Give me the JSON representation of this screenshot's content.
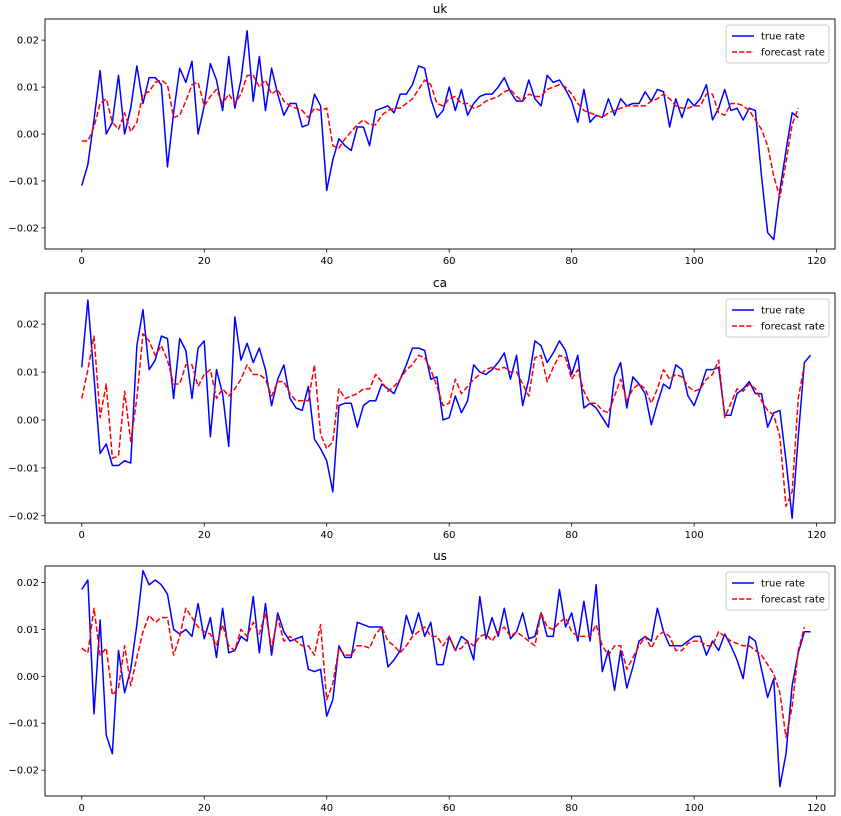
{
  "chart_data": [
    {
      "type": "line",
      "title": "uk",
      "xlim": [
        -6,
        123
      ],
      "ylim": [
        -0.0245,
        0.0245
      ],
      "xticks": [
        0,
        20,
        40,
        60,
        80,
        100,
        120
      ],
      "yticks": [
        -0.02,
        -0.01,
        0.0,
        0.01,
        0.02
      ],
      "ytick_labels": [
        "−0.02",
        "−0.01",
        "0.00",
        "0.01",
        "0.02"
      ],
      "legend_position": "top-right",
      "series": [
        {
          "name": "true rate",
          "color": "#0000ff",
          "dash": "solid",
          "values": [
            -0.011,
            -0.0065,
            0.003,
            0.0135,
            0.0,
            0.0025,
            0.0125,
            0.0,
            0.0055,
            0.0145,
            0.0065,
            0.012,
            0.012,
            0.0105,
            -0.007,
            0.0045,
            0.014,
            0.011,
            0.0155,
            0.0,
            0.006,
            0.015,
            0.0115,
            0.005,
            0.0165,
            0.0055,
            0.0115,
            0.022,
            0.007,
            0.0165,
            0.005,
            0.014,
            0.0085,
            0.004,
            0.0065,
            0.0065,
            0.0015,
            0.002,
            0.0085,
            0.006,
            -0.012,
            -0.0055,
            -0.001,
            -0.0025,
            -0.0035,
            0.0015,
            0.0015,
            -0.0025,
            0.005,
            0.0055,
            0.006,
            0.0045,
            0.0085,
            0.0085,
            0.0105,
            0.0145,
            0.014,
            0.0075,
            0.0035,
            0.005,
            0.01,
            0.005,
            0.0095,
            0.004,
            0.0065,
            0.008,
            0.0085,
            0.0085,
            0.01,
            0.012,
            0.009,
            0.007,
            0.007,
            0.0115,
            0.0075,
            0.006,
            0.0125,
            0.011,
            0.0115,
            0.0095,
            0.007,
            0.0025,
            0.0095,
            0.0025,
            0.004,
            0.0035,
            0.0075,
            0.004,
            0.0075,
            0.006,
            0.0065,
            0.0065,
            0.009,
            0.007,
            0.0095,
            0.009,
            0.0015,
            0.0075,
            0.0035,
            0.0075,
            0.006,
            0.0075,
            0.0105,
            0.003,
            0.0055,
            0.0095,
            0.005,
            0.0055,
            0.003,
            0.0055,
            0.005,
            -0.009,
            -0.021,
            -0.0225,
            -0.012,
            -0.0035,
            0.0045,
            0.0035
          ]
        },
        {
          "name": "forecast rate",
          "color": "#ff0000",
          "dash": "dashed",
          "values": [
            -0.0015,
            -0.0015,
            0.0015,
            0.0065,
            0.0075,
            0.0025,
            0.001,
            0.0045,
            0.0005,
            0.0025,
            0.0085,
            0.009,
            0.011,
            0.0115,
            0.0105,
            0.0035,
            0.004,
            0.007,
            0.0105,
            0.011,
            0.006,
            0.008,
            0.0095,
            0.0065,
            0.0085,
            0.0065,
            0.0085,
            0.0125,
            0.0125,
            0.01,
            0.0115,
            0.0085,
            0.0095,
            0.007,
            0.006,
            0.0055,
            0.005,
            0.0035,
            0.0055,
            0.005,
            0.0055,
            -0.0025,
            -0.003,
            -0.001,
            0.0005,
            0.002,
            0.003,
            0.002,
            0.002,
            0.004,
            0.005,
            0.0055,
            0.0055,
            0.0065,
            0.0075,
            0.0095,
            0.0115,
            0.0105,
            0.0065,
            0.006,
            0.0075,
            0.008,
            0.0065,
            0.0065,
            0.0055,
            0.006,
            0.007,
            0.0075,
            0.008,
            0.009,
            0.0095,
            0.008,
            0.007,
            0.0085,
            0.008,
            0.008,
            0.0095,
            0.01,
            0.0105,
            0.01,
            0.0085,
            0.0065,
            0.005,
            0.0045,
            0.004,
            0.0035,
            0.0045,
            0.005,
            0.0055,
            0.006,
            0.006,
            0.006,
            0.006,
            0.007,
            0.0075,
            0.0085,
            0.0075,
            0.006,
            0.0055,
            0.0055,
            0.006,
            0.006,
            0.0085,
            0.0085,
            0.0045,
            0.004,
            0.0065,
            0.0065,
            0.006,
            0.005,
            0.003,
            0.001,
            -0.0025,
            -0.009,
            -0.0135,
            -0.006,
            0.002,
            0.0055
          ]
        }
      ]
    },
    {
      "type": "line",
      "title": "ca",
      "xlim": [
        -6,
        123
      ],
      "ylim": [
        -0.0215,
        0.0265
      ],
      "xticks": [
        0,
        20,
        40,
        60,
        80,
        100,
        120
      ],
      "yticks": [
        -0.02,
        -0.01,
        0.0,
        0.01,
        0.02
      ],
      "ytick_labels": [
        "−0.02",
        "−0.01",
        "0.00",
        "0.01",
        "0.02"
      ],
      "legend_position": "top-right",
      "series": [
        {
          "name": "true rate",
          "color": "#0000ff",
          "dash": "solid",
          "values": [
            0.011,
            0.025,
            0.009,
            -0.007,
            -0.005,
            -0.0095,
            -0.0095,
            -0.0085,
            -0.009,
            0.0155,
            0.023,
            0.0105,
            0.0125,
            0.0175,
            0.017,
            0.0045,
            0.017,
            0.0145,
            0.0045,
            0.015,
            0.0165,
            -0.0035,
            0.0105,
            0.0055,
            -0.0055,
            0.0215,
            0.0125,
            0.016,
            0.012,
            0.015,
            0.0105,
            0.003,
            0.0085,
            0.0115,
            0.0045,
            0.0025,
            0.002,
            0.007,
            -0.004,
            -0.006,
            -0.0085,
            -0.015,
            0.003,
            0.0035,
            0.0035,
            -0.0015,
            0.003,
            0.004,
            0.004,
            0.0075,
            0.0065,
            0.0055,
            0.0085,
            0.0115,
            0.015,
            0.015,
            0.0145,
            0.0085,
            0.009,
            0.0,
            0.0005,
            0.005,
            0.0015,
            0.004,
            0.0115,
            0.01,
            0.0095,
            0.0105,
            0.012,
            0.014,
            0.0085,
            0.0135,
            0.003,
            0.0085,
            0.0165,
            0.0155,
            0.012,
            0.014,
            0.0165,
            0.0145,
            0.0095,
            0.0135,
            0.0025,
            0.0035,
            0.0025,
            0.0005,
            -0.0015,
            0.009,
            0.012,
            0.0025,
            0.009,
            0.0075,
            0.0055,
            -0.001,
            0.0035,
            0.0075,
            0.0065,
            0.0115,
            0.0105,
            0.005,
            0.003,
            0.0065,
            0.0105,
            0.0105,
            0.011,
            0.001,
            0.001,
            0.0055,
            0.0065,
            0.008,
            0.0055,
            0.0055,
            -0.0015,
            0.0015,
            0.002,
            -0.0085,
            -0.0205,
            -0.0035,
            0.012,
            0.0135
          ]
        },
        {
          "name": "forecast rate",
          "color": "#ff0000",
          "dash": "dashed",
          "values": [
            0.0045,
            0.0105,
            0.0175,
            0.0005,
            0.0075,
            -0.008,
            -0.0075,
            0.006,
            -0.0045,
            0.0045,
            0.018,
            0.0165,
            0.0135,
            0.0155,
            0.0125,
            0.0075,
            0.0075,
            0.0115,
            0.0115,
            0.007,
            0.0095,
            0.0105,
            0.0045,
            0.0065,
            0.005,
            0.0065,
            0.0085,
            0.0115,
            0.0095,
            0.0095,
            0.0085,
            0.005,
            0.008,
            0.008,
            0.0055,
            0.004,
            0.004,
            0.004,
            0.0115,
            -0.003,
            -0.006,
            -0.0045,
            0.0065,
            0.0045,
            0.005,
            0.0055,
            0.0065,
            0.0065,
            0.0095,
            0.008,
            0.006,
            0.007,
            0.0085,
            0.0105,
            0.0115,
            0.0135,
            0.013,
            0.0105,
            0.007,
            0.003,
            0.0035,
            0.0085,
            0.0055,
            0.007,
            0.0085,
            0.0095,
            0.0105,
            0.011,
            0.0105,
            0.011,
            0.01,
            0.01,
            0.0075,
            0.005,
            0.013,
            0.0135,
            0.008,
            0.011,
            0.0135,
            0.013,
            0.0085,
            0.0105,
            0.006,
            0.0035,
            0.0035,
            0.002,
            0.0015,
            0.005,
            0.0085,
            0.004,
            0.0065,
            0.0075,
            0.0065,
            0.0035,
            0.0065,
            0.0105,
            0.0085,
            0.0095,
            0.009,
            0.007,
            0.006,
            0.0065,
            0.0085,
            0.0095,
            0.0125,
            0.0005,
            0.0035,
            0.0065,
            0.006,
            0.0075,
            0.0065,
            0.004,
            0.002,
            0.001,
            -0.0035,
            -0.018,
            -0.015,
            0.0045,
            0.0115
          ]
        }
      ]
    },
    {
      "type": "line",
      "title": "us",
      "xlim": [
        -6,
        123
      ],
      "ylim": [
        -0.0255,
        0.0235
      ],
      "xticks": [
        0,
        20,
        40,
        60,
        80,
        100,
        120
      ],
      "yticks": [
        -0.02,
        -0.01,
        0.0,
        0.01,
        0.02
      ],
      "ytick_labels": [
        "−0.02",
        "−0.01",
        "0.00",
        "0.01",
        "0.02"
      ],
      "legend_position": "top-right",
      "series": [
        {
          "name": "true rate",
          "color": "#0000ff",
          "dash": "solid",
          "values": [
            0.0185,
            0.0205,
            -0.008,
            0.012,
            -0.0125,
            -0.0165,
            0.0055,
            -0.0035,
            0.0015,
            0.011,
            0.0225,
            0.0195,
            0.0205,
            0.0195,
            0.0175,
            0.01,
            0.009,
            0.01,
            0.0085,
            0.0155,
            0.008,
            0.0125,
            0.004,
            0.0145,
            0.005,
            0.0055,
            0.0085,
            0.0075,
            0.017,
            0.005,
            0.0155,
            0.0045,
            0.0135,
            0.0095,
            0.0075,
            0.008,
            0.0085,
            0.0015,
            0.001,
            0.0015,
            -0.0085,
            -0.005,
            0.0065,
            0.004,
            0.004,
            0.0115,
            0.011,
            0.0105,
            0.0105,
            0.0105,
            0.002,
            0.0035,
            0.0055,
            0.013,
            0.009,
            0.0135,
            0.0085,
            0.0115,
            0.0025,
            0.0025,
            0.0085,
            0.0055,
            0.0085,
            0.0075,
            0.0035,
            0.017,
            0.008,
            0.0125,
            0.0085,
            0.0145,
            0.008,
            0.0095,
            0.0135,
            0.008,
            0.0085,
            0.0135,
            0.0085,
            0.0085,
            0.0185,
            0.0105,
            0.0135,
            0.0075,
            0.016,
            0.0075,
            0.0195,
            0.001,
            0.0055,
            -0.003,
            0.0055,
            -0.0025,
            0.002,
            0.0075,
            0.0085,
            0.0075,
            0.0145,
            0.0095,
            0.0065,
            0.0065,
            0.0065,
            0.0075,
            0.0085,
            0.0085,
            0.0045,
            0.0075,
            0.0055,
            0.009,
            0.0065,
            0.0035,
            -0.0005,
            0.0085,
            0.0075,
            0.0015,
            -0.0045,
            -0.0005,
            -0.0235,
            -0.0165,
            -0.002,
            0.005,
            0.0095,
            0.0095
          ]
        },
        {
          "name": "forecast rate",
          "color": "#ff0000",
          "dash": "dashed",
          "values": [
            0.006,
            0.005,
            0.0145,
            0.0045,
            0.006,
            -0.004,
            -0.0025,
            0.0065,
            -0.002,
            0.004,
            0.0095,
            0.013,
            0.0115,
            0.0125,
            0.0125,
            0.0045,
            0.0085,
            0.0145,
            0.0125,
            0.0105,
            0.0095,
            0.009,
            0.0065,
            0.011,
            0.0065,
            0.0055,
            0.01,
            0.0085,
            0.0115,
            0.009,
            0.0135,
            0.006,
            0.0125,
            0.0075,
            0.0085,
            0.0075,
            0.0065,
            0.0065,
            0.0045,
            0.011,
            -0.005,
            -0.0015,
            0.006,
            0.0045,
            0.0045,
            0.0065,
            0.0065,
            0.006,
            0.009,
            0.0105,
            0.0075,
            0.0065,
            0.005,
            0.0065,
            0.0085,
            0.0095,
            0.0105,
            0.0085,
            0.0085,
            0.0065,
            0.0085,
            0.0055,
            0.006,
            0.0075,
            0.0065,
            0.0085,
            0.009,
            0.0075,
            0.0095,
            0.0105,
            0.0085,
            0.0095,
            0.0085,
            0.0075,
            0.0065,
            0.0135,
            0.0105,
            0.01,
            0.0115,
            0.0125,
            0.0095,
            0.0085,
            0.0085,
            0.0085,
            0.011,
            0.0065,
            0.0045,
            0.0065,
            0.0065,
            0.0015,
            0.004,
            0.0065,
            0.0085,
            0.006,
            0.0085,
            0.0095,
            0.0085,
            0.0055,
            0.0055,
            0.007,
            0.0075,
            0.0075,
            0.0065,
            0.0065,
            0.0095,
            0.0085,
            0.0075,
            0.007,
            0.0065,
            0.0065,
            0.0055,
            0.0045,
            0.0025,
            0.0005,
            -0.0035,
            -0.013,
            -0.0065,
            0.0055,
            0.0105
          ]
        }
      ]
    }
  ]
}
